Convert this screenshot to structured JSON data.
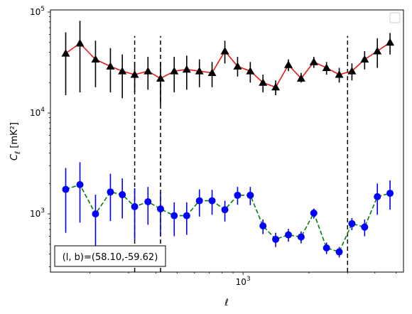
{
  "chart_data": {
    "type": "line",
    "xlabel": "ℓ",
    "ylabel": "C_ℓ  [mK²]",
    "xscale": "log",
    "yscale": "log",
    "xlim": [
      132,
      5400
    ],
    "ylim": [
      265,
      105000
    ],
    "x_tick_labels": [
      {
        "value": 1000,
        "base": "10",
        "exp": "3"
      }
    ],
    "y_tick_labels": [
      {
        "value": 1000,
        "base": "10",
        "exp": "3"
      },
      {
        "value": 10000,
        "base": "10",
        "exp": "4"
      },
      {
        "value": 100000,
        "base": "10",
        "exp": "5"
      }
    ],
    "grid": false,
    "legend": {
      "placement": "top-right",
      "entries": []
    },
    "vlines": [
      {
        "x": 320,
        "ymin": 265,
        "ymax": 58000,
        "style": "dashed",
        "color": "#000000"
      },
      {
        "x": 420,
        "ymin": 265,
        "ymax": 58000,
        "style": "dashed",
        "color": "#000000"
      },
      {
        "x": 3000,
        "ymin": 265,
        "ymax": 58000,
        "style": "dashed",
        "color": "#000000"
      }
    ],
    "x": [
      155,
      180,
      212,
      248,
      281,
      320,
      368,
      420,
      485,
      553,
      632,
      722,
      826,
      944,
      1079,
      1233,
      1409,
      1611,
      1841,
      2104,
      2405,
      2748,
      3141,
      3590,
      4103,
      4689
    ],
    "series": [
      {
        "marker": "triangle",
        "marker_color": "#000000",
        "line_color": "#e31a1c",
        "line_style": "solid",
        "errorbar_color": "#000000",
        "values": [
          39000,
          49000,
          34000,
          29000,
          26000,
          24000,
          26000,
          22000,
          26000,
          27000,
          26000,
          25000,
          41000,
          29000,
          26000,
          20000,
          18000,
          30000,
          22000,
          32000,
          28000,
          24000,
          26000,
          34000,
          41000,
          50000
        ],
        "err_low": [
          15000,
          16000,
          18000,
          16000,
          14000,
          16000,
          17000,
          12000,
          16000,
          17000,
          18000,
          18000,
          31000,
          23000,
          20000,
          16000,
          15000,
          26000,
          20000,
          28000,
          24000,
          20000,
          21000,
          27000,
          28000,
          38000
        ],
        "err_high": [
          63000,
          82000,
          52000,
          44000,
          38000,
          32000,
          36000,
          32000,
          36000,
          37000,
          34000,
          32000,
          52000,
          36000,
          32000,
          24000,
          21000,
          34000,
          25000,
          36000,
          32000,
          28000,
          31000,
          41000,
          55000,
          62000
        ]
      },
      {
        "marker": "circle",
        "marker_color": "#0000ff",
        "line_color": "#008000",
        "line_style": "dashed",
        "errorbar_color": "#0000ff",
        "values": [
          1750,
          1950,
          1000,
          1650,
          1550,
          1180,
          1320,
          1120,
          960,
          960,
          1350,
          1350,
          1100,
          1530,
          1530,
          760,
          560,
          620,
          590,
          1020,
          460,
          420,
          800,
          740,
          1480,
          1600
        ],
        "err_low": [
          650,
          820,
          440,
          850,
          900,
          560,
          780,
          610,
          600,
          620,
          940,
          980,
          840,
          1230,
          1220,
          630,
          470,
          530,
          510,
          900,
          400,
          370,
          690,
          600,
          980,
          1100
        ],
        "err_high": [
          2850,
          3250,
          1550,
          2500,
          2250,
          1800,
          1850,
          1650,
          1300,
          1300,
          1750,
          1730,
          1350,
          1850,
          1850,
          880,
          650,
          710,
          670,
          1130,
          520,
          470,
          910,
          880,
          2000,
          2150
        ]
      }
    ],
    "annotation": "(l, b)=(58.10,-59.62)"
  }
}
